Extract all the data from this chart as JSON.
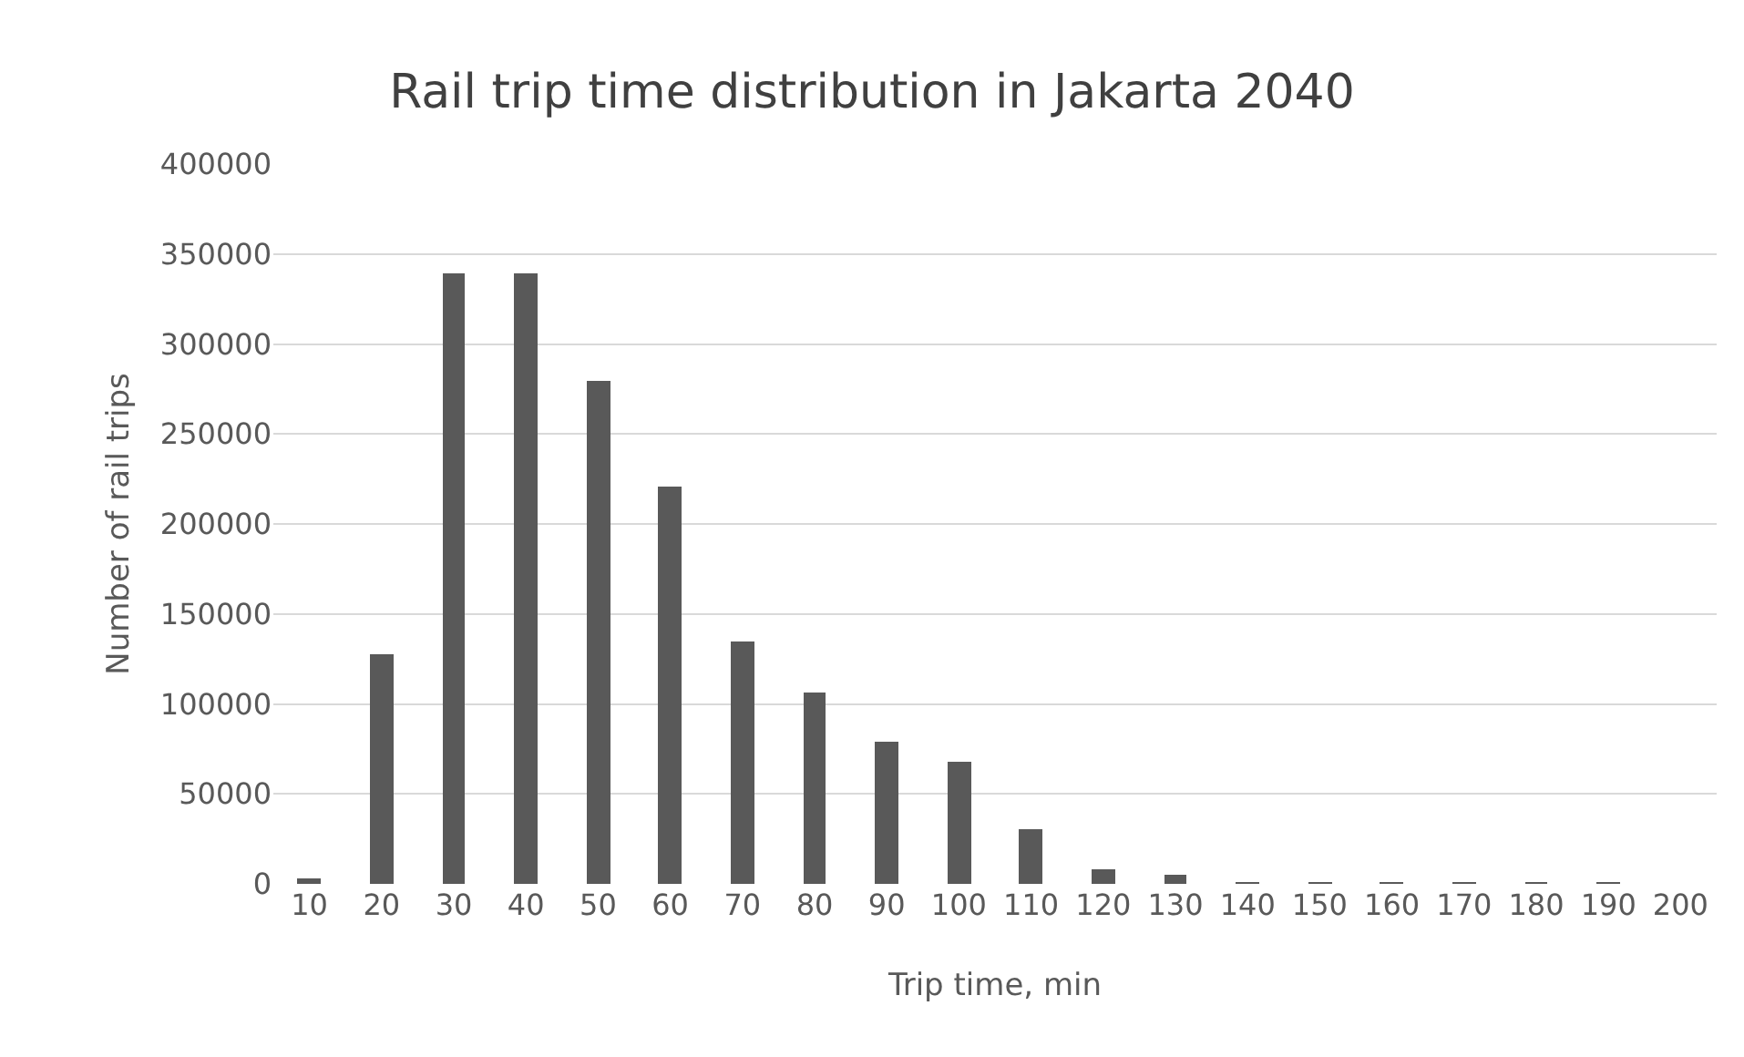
{
  "chart_data": {
    "type": "bar",
    "title": "Rail trip time distribution in Jakarta 2040",
    "xlabel": "Trip time, min",
    "ylabel": "Number of rail trips",
    "categories": [
      "10",
      "20",
      "30",
      "40",
      "50",
      "60",
      "70",
      "80",
      "90",
      "100",
      "110",
      "120",
      "130",
      "140",
      "150",
      "160",
      "170",
      "180",
      "190",
      "200"
    ],
    "values": [
      3000,
      128000,
      339000,
      339000,
      280000,
      221000,
      135000,
      106000,
      79000,
      68000,
      30000,
      8000,
      5000,
      1000,
      1000,
      1000,
      1000,
      1000,
      1000,
      0
    ],
    "color": "#595959",
    "ylim": [
      0,
      400000
    ],
    "yticks": [
      0,
      50000,
      100000,
      150000,
      200000,
      250000,
      300000,
      350000,
      400000
    ],
    "grid": "y",
    "legend": false
  }
}
